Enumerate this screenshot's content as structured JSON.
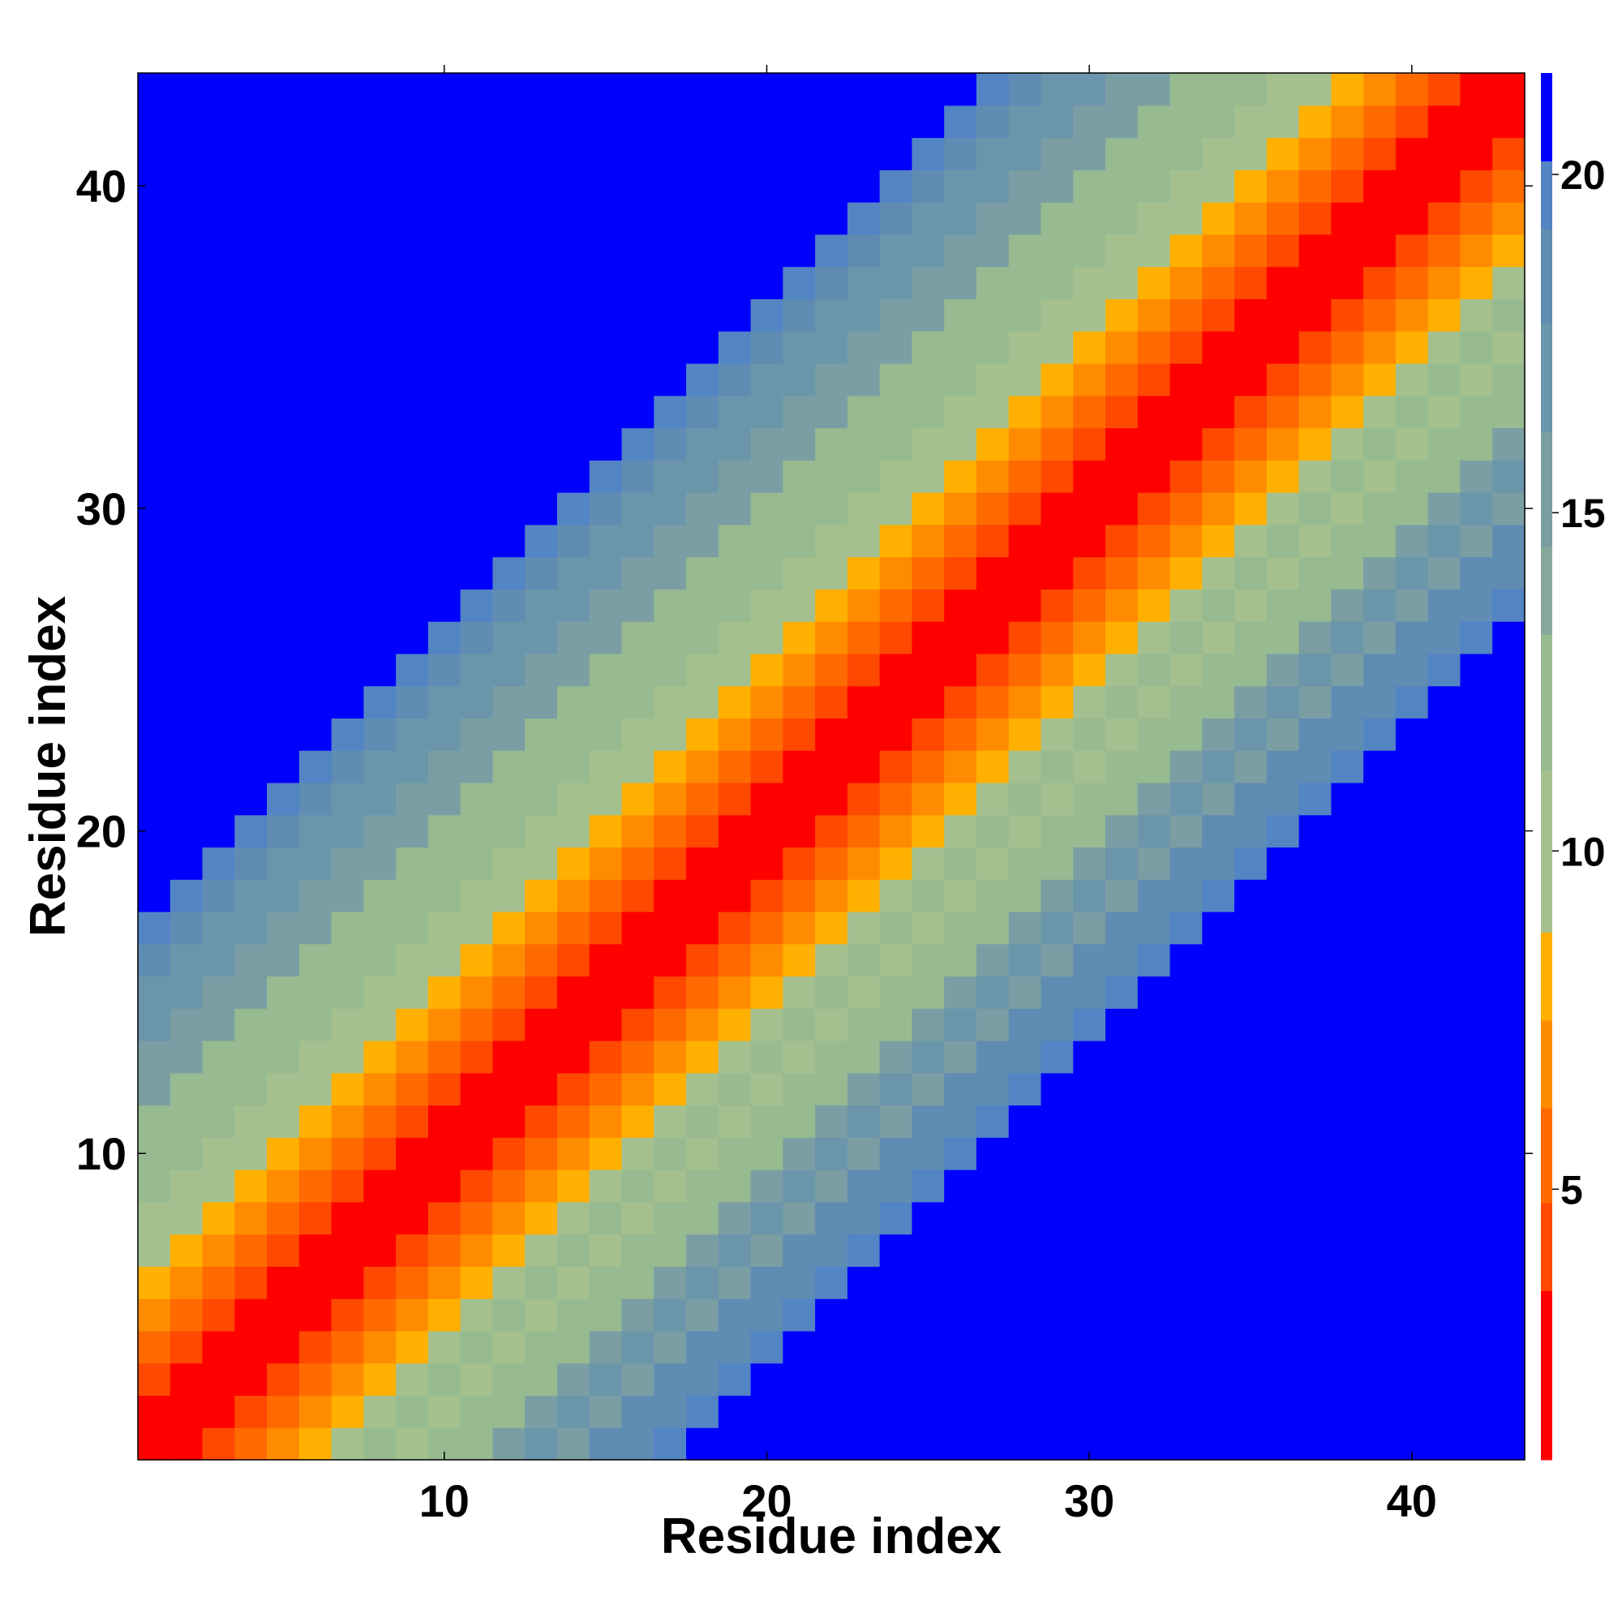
{
  "chart_data": {
    "type": "heatmap",
    "title": "",
    "xlabel": "Residue index",
    "ylabel": "Residue index",
    "n": 43,
    "xlim": [
      0.5,
      43.5
    ],
    "ylim": [
      0.5,
      43.5
    ],
    "xticks": [
      "10",
      "20",
      "30",
      "40"
    ],
    "xtick_values": [
      10,
      20,
      30,
      40
    ],
    "yticks": [
      "10",
      "20",
      "30",
      "40"
    ],
    "ytick_values": [
      10,
      20,
      30,
      40
    ],
    "value_description": "contact distance (symmetric); diagonal band |i-j| gives value, off-band values above 20 shown as blue",
    "band_values": [
      1.0,
      1.0,
      3.8,
      5.5,
      7.0,
      8.5,
      9.5,
      10.5,
      11.5,
      12.5,
      13.5,
      14.5,
      15.5,
      16.5,
      17.5,
      18.5,
      19.5
    ],
    "cutoff": 20,
    "colorbar": {
      "range": [
        1,
        21.5
      ],
      "ticks": [
        "5",
        "10",
        "15",
        "20"
      ],
      "tick_values": [
        5,
        10,
        15,
        20
      ],
      "bands": [
        {
          "from": 1,
          "to": 3.5,
          "color": "#ff0000"
        },
        {
          "from": 3.5,
          "to": 4.8,
          "color": "#ff4800"
        },
        {
          "from": 4.8,
          "to": 6.2,
          "color": "#ff6a00"
        },
        {
          "from": 6.2,
          "to": 7.5,
          "color": "#ff8c00"
        },
        {
          "from": 7.5,
          "to": 8.8,
          "color": "#ffb000"
        },
        {
          "from": 8.8,
          "to": 11.2,
          "color": "#a4c08e"
        },
        {
          "from": 11.2,
          "to": 13.2,
          "color": "#97ba90"
        },
        {
          "from": 13.2,
          "to": 14.5,
          "color": "#86a89a"
        },
        {
          "from": 14.5,
          "to": 16.2,
          "color": "#7a9ea3"
        },
        {
          "from": 16.2,
          "to": 17.8,
          "color": "#6b95ab"
        },
        {
          "from": 17.8,
          "to": 19.2,
          "color": "#5f8cb3"
        },
        {
          "from": 19.2,
          "to": 20.2,
          "color": "#5384c4"
        },
        {
          "from": 20.2,
          "to": 21.5,
          "color": "#0000ff"
        }
      ]
    }
  }
}
